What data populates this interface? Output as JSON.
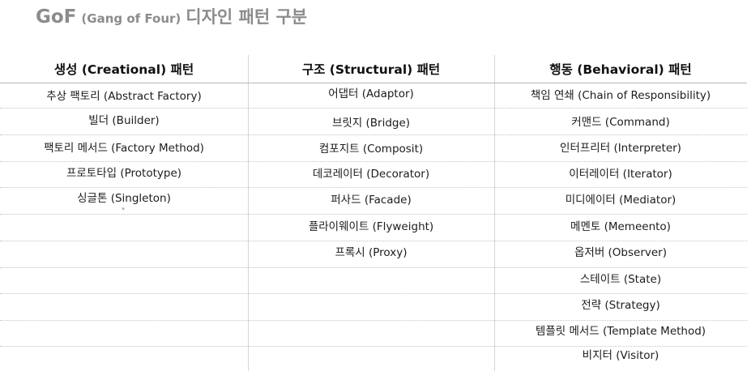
{
  "title": {
    "main": "GoF",
    "sub": "(Gang of Four)",
    "korean": "디자인 패턴 구분"
  },
  "columns": [
    {
      "header": "생성 (Creational) 패턴",
      "items": [
        "추상 팩토리 (Abstract Factory)",
        "빌더 (Builder)",
        "팩토리 메서드 (Factory Method)",
        "프로토타입 (Prototype)",
        "싱글톤 (Singleton)"
      ]
    },
    {
      "header": "구조 (Structural) 패턴",
      "items": [
        "어댑터 (Adaptor)",
        "브릿지 (Bridge)",
        "컴포지트 (Composit)",
        "데코레이터 (Decorator)",
        "퍼사드 (Facade)",
        "플라이웨이트 (Flyweight)",
        "프록시 (Proxy)"
      ]
    },
    {
      "header": "행동 (Behavioral) 패턴",
      "items": [
        "책임 연쇄 (Chain of Responsibility)",
        "커맨드 (Command)",
        "인터프리터 (Interpreter)",
        "이터레이터 (Iterator)",
        "미디에이터 (Mediator)",
        "메멘토 (Memeento)",
        "옵저버 (Observer)",
        "스테이트 (State)",
        "전략 (Strategy)",
        "템플릿 메서드 (Template Method)",
        "비지터 (Visitor)"
      ]
    }
  ],
  "mark": "\""
}
